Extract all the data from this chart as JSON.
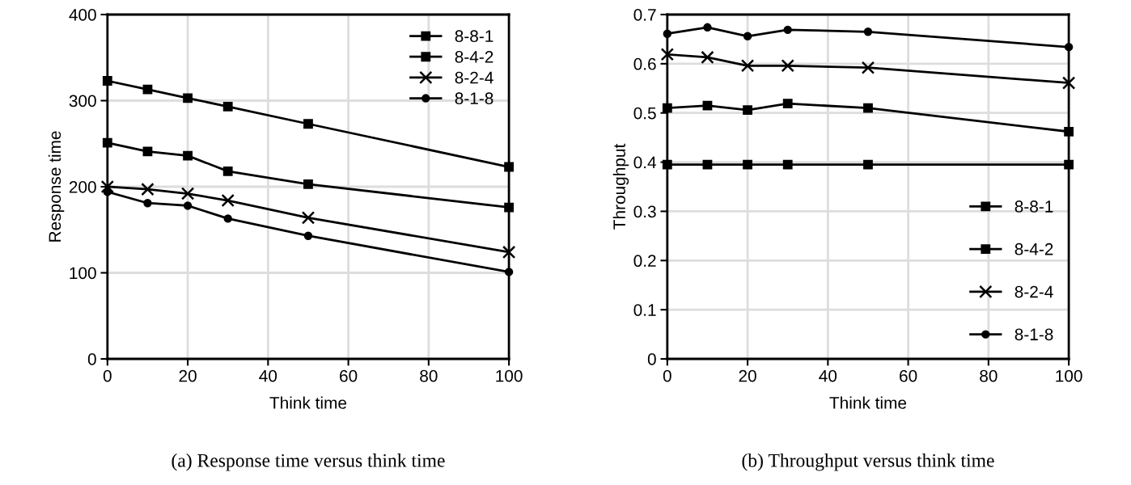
{
  "chart_data": [
    {
      "type": "line",
      "title": "(a) Response time versus think time",
      "xlabel": "Think time",
      "ylabel": "Response time",
      "x": [
        0,
        10,
        20,
        30,
        50,
        100
      ],
      "xlim": [
        0,
        100
      ],
      "xticks": [
        0,
        20,
        40,
        60,
        80,
        100
      ],
      "ylim": [
        0,
        400
      ],
      "yticks": [
        0,
        100,
        200,
        300,
        400
      ],
      "grid": true,
      "legend": "top right",
      "line_style": "solid",
      "series": [
        {
          "name": "8-8-1",
          "color": "#000000",
          "marker": "square",
          "values": [
            323,
            313,
            303,
            293,
            273,
            223
          ]
        },
        {
          "name": "8-4-2",
          "color": "#000000",
          "marker": "square",
          "values": [
            251,
            241,
            236,
            218,
            203,
            176
          ]
        },
        {
          "name": "8-2-4",
          "color": "#000000",
          "marker": "cross",
          "values": [
            200,
            197,
            192,
            184,
            164,
            124
          ]
        },
        {
          "name": "8-1-8",
          "color": "#000000",
          "marker": "circle",
          "values": [
            194,
            181,
            178,
            163,
            143,
            101
          ]
        }
      ]
    },
    {
      "type": "line",
      "title": "(b) Throughput versus think time",
      "xlabel": "Think time",
      "ylabel": "Throughput",
      "x": [
        0,
        10,
        20,
        30,
        50,
        100
      ],
      "xlim": [
        0,
        100
      ],
      "xticks": [
        0,
        20,
        40,
        60,
        80,
        100
      ],
      "ylim": [
        0,
        0.7
      ],
      "yticks": [
        0,
        0.1,
        0.2,
        0.3,
        0.4,
        0.5,
        0.6,
        0.7
      ],
      "grid": true,
      "legend": "bottom right",
      "line_style": "solid",
      "series": [
        {
          "name": "8-8-1",
          "color": "#000000",
          "marker": "square",
          "values": [
            0.395,
            0.395,
            0.395,
            0.395,
            0.395,
            0.395
          ]
        },
        {
          "name": "8-4-2",
          "color": "#000000",
          "marker": "square",
          "values": [
            0.51,
            0.515,
            0.506,
            0.519,
            0.51,
            0.462
          ]
        },
        {
          "name": "8-2-4",
          "color": "#000000",
          "marker": "cross",
          "values": [
            0.619,
            0.613,
            0.596,
            0.596,
            0.592,
            0.561
          ]
        },
        {
          "name": "8-1-8",
          "color": "#000000",
          "marker": "circle",
          "values": [
            0.661,
            0.674,
            0.656,
            0.669,
            0.665,
            0.634
          ]
        }
      ]
    }
  ]
}
